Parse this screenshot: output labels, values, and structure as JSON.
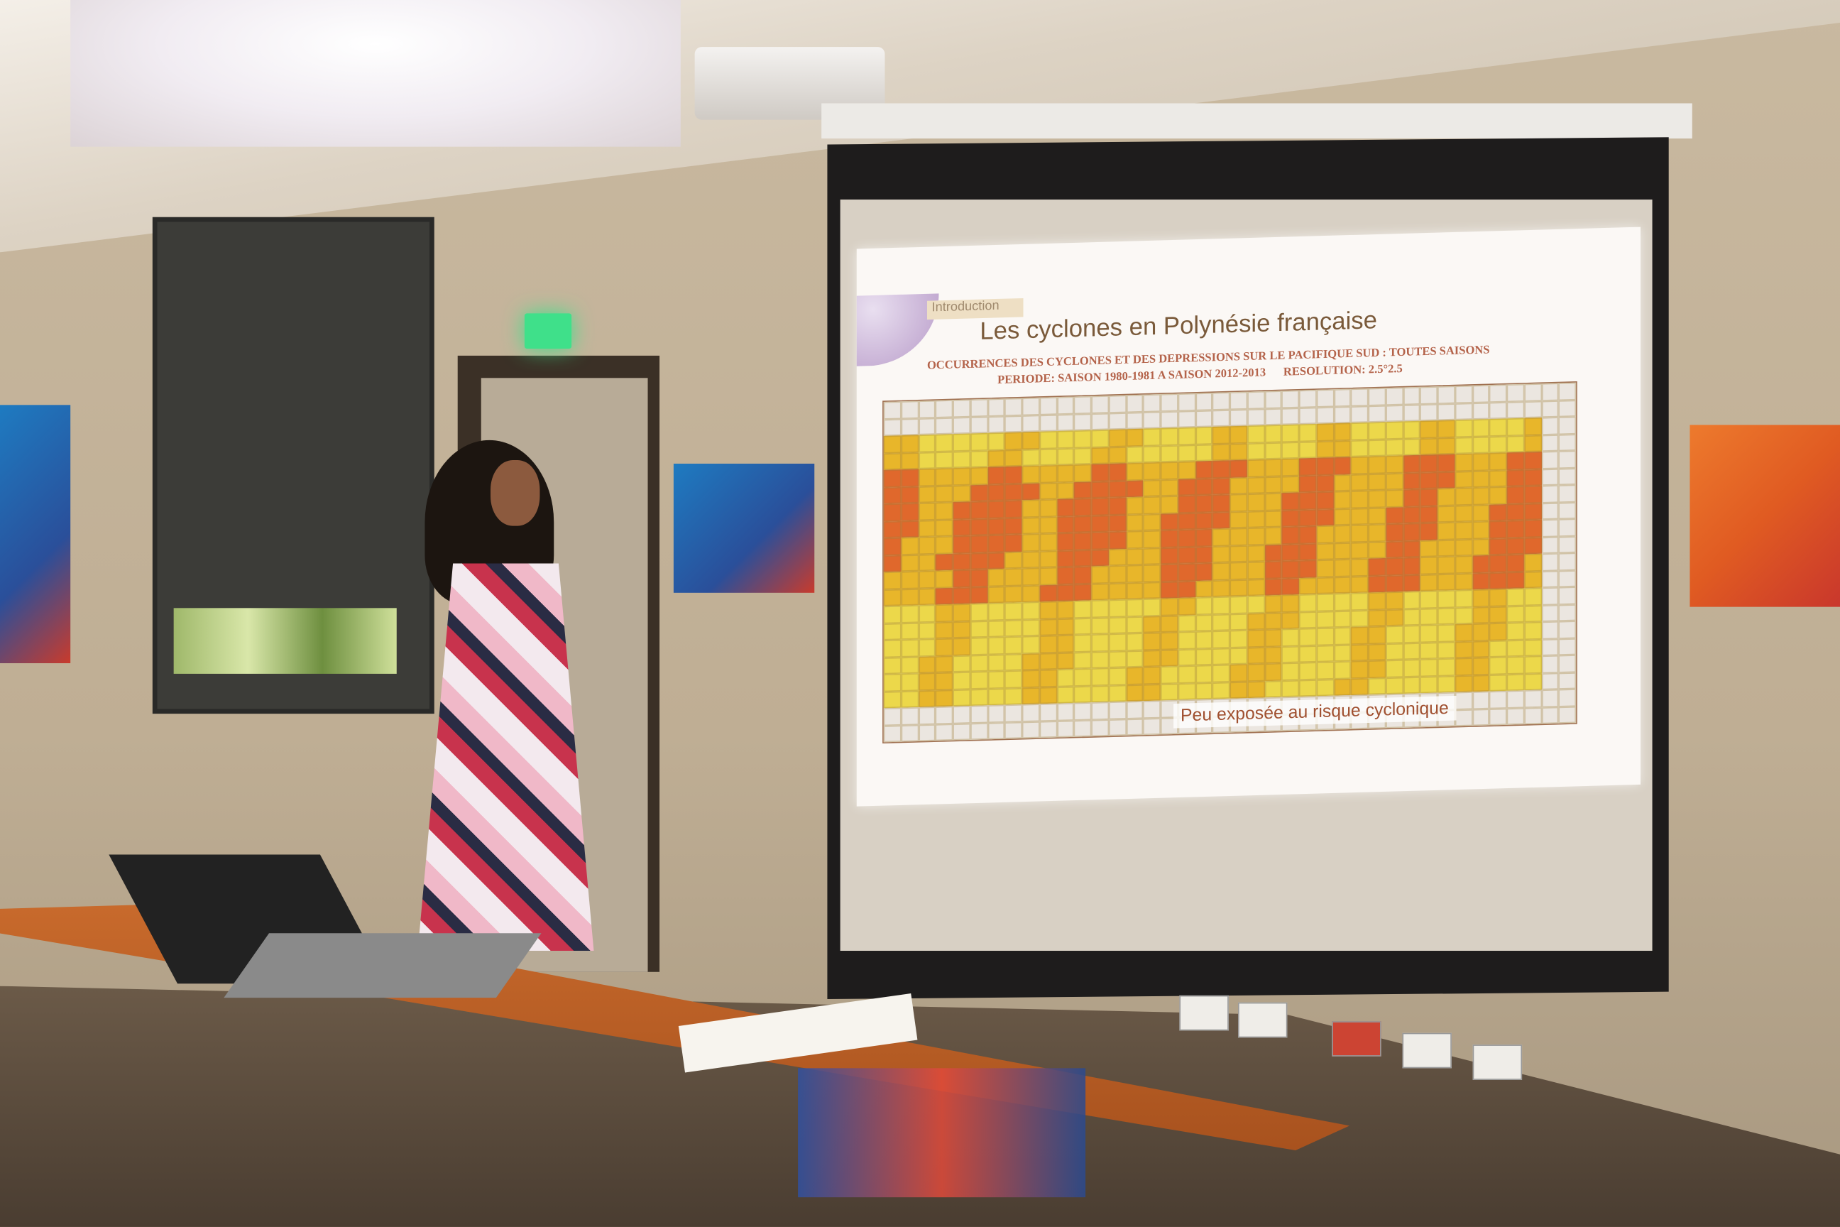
{
  "slide": {
    "section_tab": "Introduction",
    "title": "Les cyclones en Polynésie française",
    "subtitle_line1": "OCCURRENCES DES CYCLONES ET DES DEPRESSIONS SUR LE PACIFIQUE SUD : TOUTES SAISONS",
    "subtitle_line2_period": "PERIODE: SAISON 1980-1981 A SAISON 2012-2013",
    "subtitle_line2_resolution": "RESOLUTION: 2.5°2.5",
    "map_note": "Peu exposée au risque cyclonique",
    "map_colors": {
      "high": "#e0682c",
      "mid": "#e8b62a",
      "low": "#ecd84a",
      "none": "#ebe6e0"
    }
  },
  "scene": {
    "exit_sign_color": "#3fe08a",
    "table_color": "#c86a2c"
  }
}
